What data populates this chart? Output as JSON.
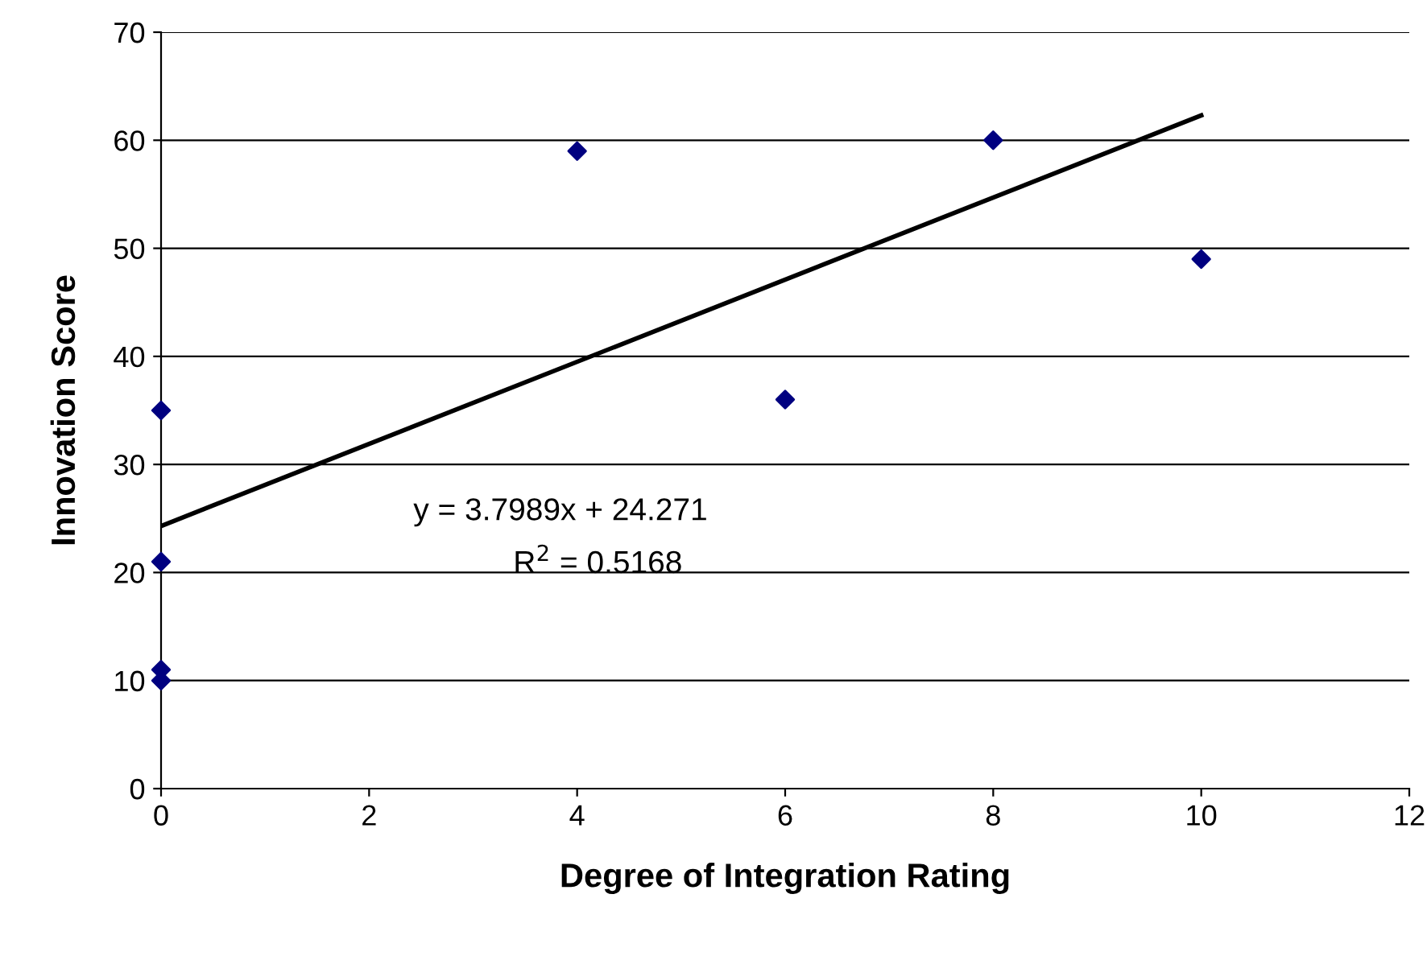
{
  "chart_data": {
    "type": "scatter",
    "xlabel": "Degree of Integration Rating",
    "ylabel": "Innovation Score",
    "xlim": [
      0,
      12
    ],
    "xticks": [
      0,
      2,
      4,
      6,
      8,
      10,
      12
    ],
    "ylim": [
      0,
      70
    ],
    "yticks": [
      0,
      10,
      20,
      30,
      40,
      50,
      60,
      70
    ],
    "grid": "y",
    "series": [
      {
        "marker": "diamond",
        "color": "#000080",
        "x": [
          0,
          0,
          0,
          0,
          4,
          6,
          8,
          10
        ],
        "values": [
          35,
          21,
          11,
          10,
          59,
          36,
          60,
          49
        ]
      },
      {
        "type": "line",
        "color": "#000000",
        "x": [
          0,
          10
        ],
        "values": [
          24.3,
          62.3
        ],
        "marker": "none",
        "line_style": "solid"
      }
    ],
    "annotations": [
      "y = 3.7989x + 24.271",
      "R$^{2}$ = 0.5168"
    ]
  }
}
